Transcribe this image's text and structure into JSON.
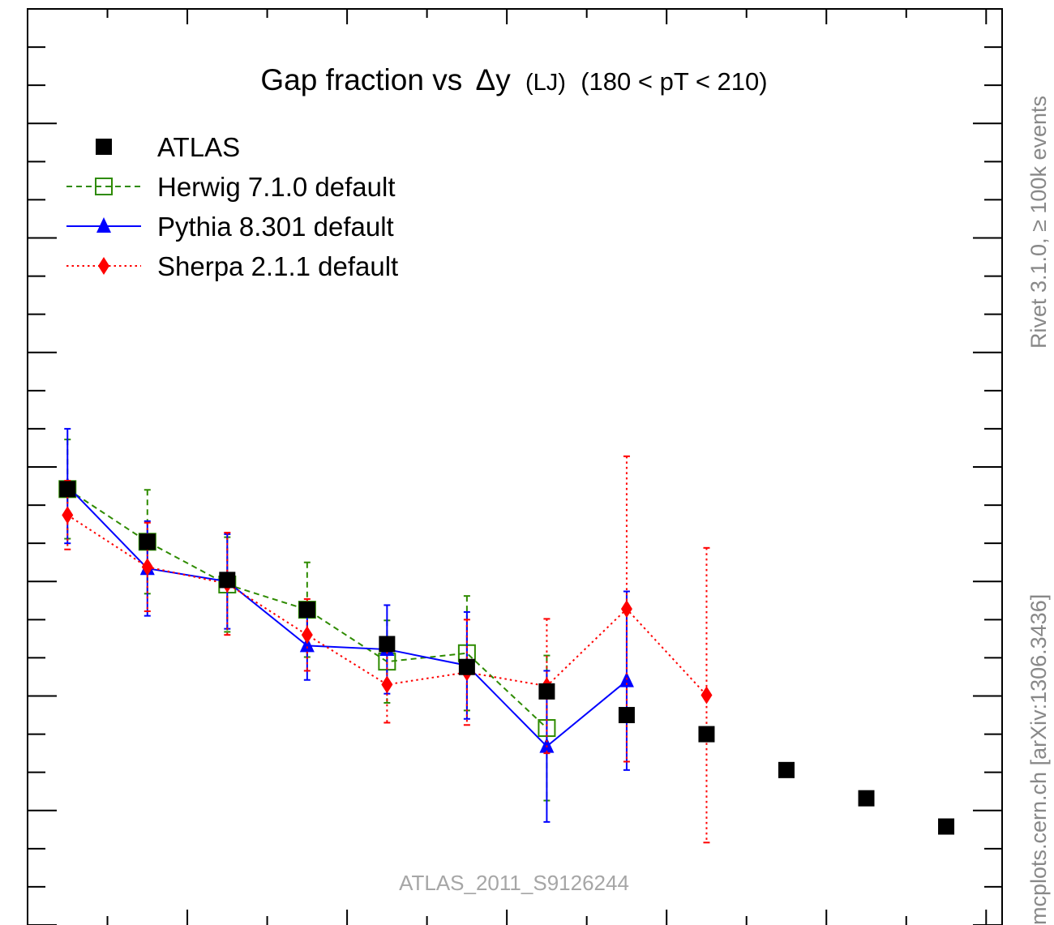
{
  "header": {
    "main": "Gap fraction vs",
    "delta": "Δy",
    "sub": "(LJ)",
    "range": "(180 < pT < 210)"
  },
  "watermark": "ATLAS_2011_S9126244",
  "side_top": "Rivet 3.1.0, ≥ 100k events",
  "side_bottom": "mcplots.cern.ch [arXiv:1306.3436]",
  "chart_data": {
    "type": "scatter",
    "x": [
      0.25,
      0.75,
      1.25,
      1.75,
      2.25,
      2.75,
      3.25,
      3.75,
      4.25,
      4.75,
      5.25,
      5.75
    ],
    "xlim": [
      0,
      6.1
    ],
    "ylim": [
      0,
      1.2
    ],
    "grid": false,
    "legend_position": "top-left",
    "series": [
      {
        "name": "ATLAS",
        "style": "marker-only",
        "marker": "square-filled",
        "color": "#000000",
        "values": [
          0.571,
          0.502,
          0.452,
          0.413,
          0.368,
          0.338,
          0.306,
          0.275,
          0.25,
          0.203,
          0.166,
          0.129
        ],
        "err": [
          0,
          0,
          0,
          0,
          0,
          0,
          0,
          0,
          0,
          0,
          0,
          0
        ]
      },
      {
        "name": "Herwig 7.1.0 default",
        "style": "dashed",
        "marker": "square-open",
        "color": "#2e8b00",
        "values": [
          0.571,
          0.502,
          0.446,
          0.413,
          0.345,
          0.356,
          0.258
        ],
        "err": [
          0.065,
          0.068,
          0.062,
          0.062,
          0.054,
          0.075,
          0.095
        ]
      },
      {
        "name": "Pythia 8.301 default",
        "style": "solid",
        "marker": "triangle-filled",
        "color": "#0000ff",
        "values": [
          0.575,
          0.467,
          0.45,
          0.366,
          0.361,
          0.34,
          0.234,
          0.32
        ],
        "err": [
          0.075,
          0.062,
          0.062,
          0.045,
          0.058,
          0.07,
          0.099,
          0.117
        ]
      },
      {
        "name": "Sherpa 2.1.1 default",
        "style": "dotted",
        "marker": "diamond-filled",
        "color": "#ff0000",
        "values": [
          0.537,
          0.469,
          0.447,
          0.38,
          0.315,
          0.331,
          0.313,
          0.414,
          0.301
        ],
        "err": [
          0.045,
          0.058,
          0.067,
          0.047,
          0.05,
          0.069,
          0.088,
          0.2,
          0.193
        ]
      }
    ]
  }
}
